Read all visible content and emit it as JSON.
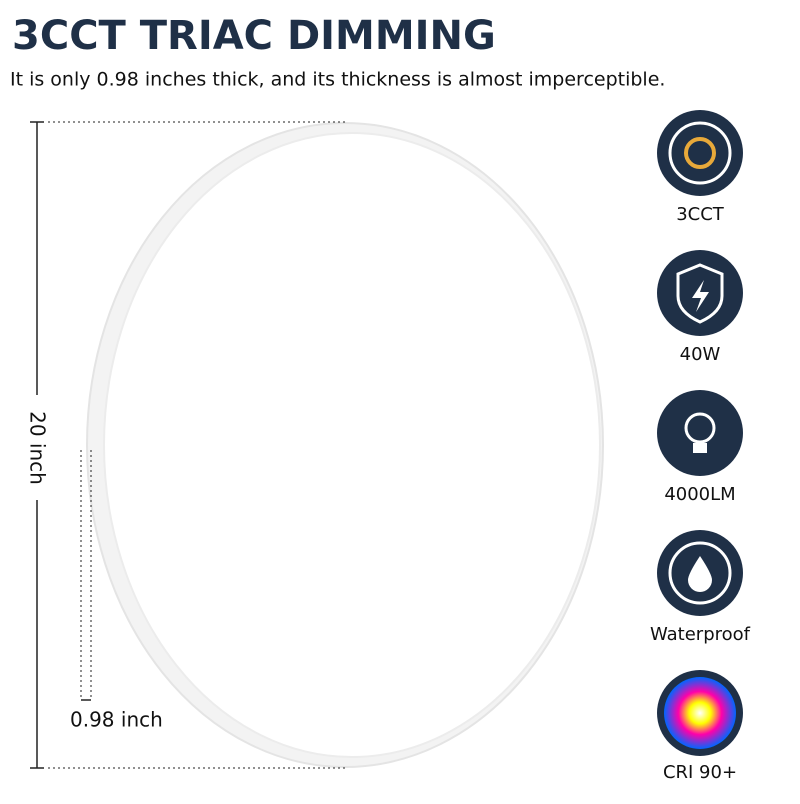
{
  "header": {
    "title": "3CCT TRIAC DIMMING",
    "subtitle": "It is only 0.98 inches thick, and its thickness is almost imperceptible."
  },
  "dimensions": {
    "diameter": "20 inch",
    "thickness": "0.98 inch"
  },
  "features": [
    {
      "label": "3CCT"
    },
    {
      "label": "40W"
    },
    {
      "label": "4000LM"
    },
    {
      "label": "Waterproof"
    },
    {
      "label": "CRI 90+"
    }
  ]
}
